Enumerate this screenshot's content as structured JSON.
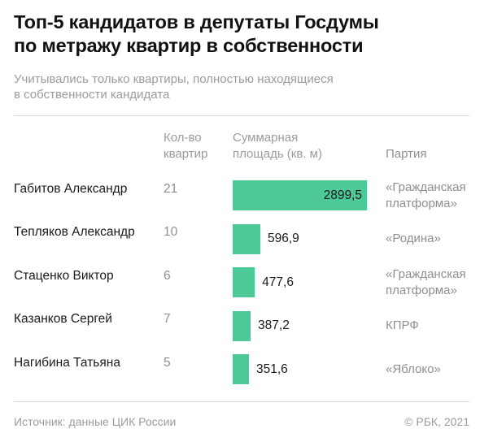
{
  "header": {
    "title_line1": "Топ-5 кандидатов в депутаты Госдумы",
    "title_line2": "по метражу квартир в собственности",
    "subtitle_line1": "Учитывались только квартиры, полностью находящиеся",
    "subtitle_line2": "в собственности кандидата"
  },
  "columns": {
    "count_line1": "Кол-во",
    "count_line2": "квартир",
    "area_line1": "Суммарная",
    "area_line2": "площадь (кв. м)",
    "party": "Партия"
  },
  "colors": {
    "bar": "#4dc897"
  },
  "chart_data": {
    "type": "bar",
    "orientation": "horizontal",
    "title": "Топ-5 кандидатов в депутаты Госдумы по метражу квартир в собственности",
    "xlabel": "Суммарная площадь (кв. м)",
    "categories": [
      "Габитов Александр",
      "Тепляков Александр",
      "Стаценко Виктор",
      "Казанков Сергей",
      "Нагибина Татьяна"
    ],
    "values": [
      2899.5,
      596.9,
      477.6,
      387.2,
      351.6
    ],
    "value_labels": [
      "2899,5",
      "596,9",
      "477,6",
      "387,2",
      "351,6"
    ],
    "counts": [
      "21",
      "10",
      "6",
      "7",
      "5"
    ],
    "parties": [
      [
        "«Гражданская",
        "платформа»"
      ],
      [
        "«Родина»"
      ],
      [
        "«Гражданская",
        "платформа»"
      ],
      [
        "КПРФ"
      ],
      [
        "«Яблоко»"
      ]
    ],
    "xlim": [
      0,
      2899.5
    ],
    "grid": false,
    "legend": "none"
  },
  "footer": {
    "source": "Источник:  данные ЦИК России",
    "copyright": "© РБК, 2021"
  }
}
